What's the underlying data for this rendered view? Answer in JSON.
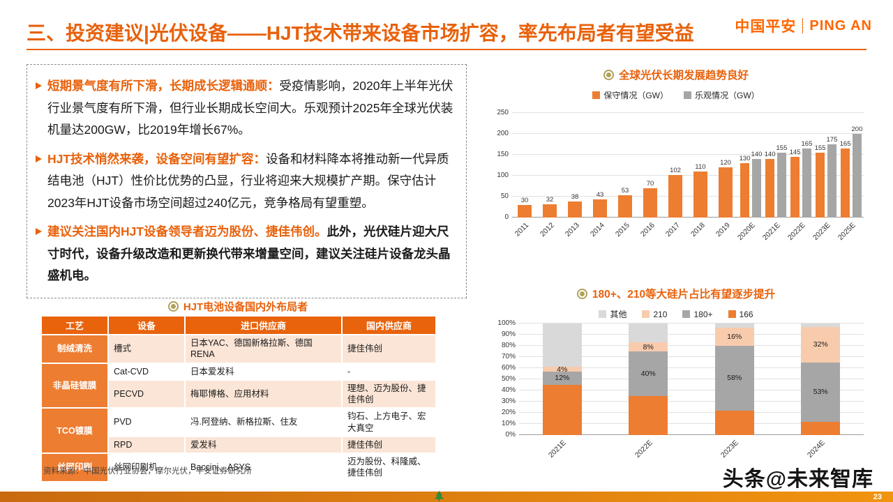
{
  "title": "三、投资建议|光伏设备——HJT技术带来设备市场扩容，率先布局者有望受益",
  "logo": {
    "cn": "中国平安",
    "en": "PING AN"
  },
  "bullets": [
    {
      "lead": "短期景气度有所下滑，长期成长逻辑通顺：",
      "body": "受疫情影响，2020年上半年光伏行业景气度有所下滑，但行业长期成长空间大。乐观预计2025年全球光伏装机量达200GW，比2019年增长67%。"
    },
    {
      "lead": "HJT技术悄然来袭，设备空间有望扩容：",
      "body": "设备和材料降本将推动新一代异质结电池（HJT）性价比优势的凸显，行业将迎来大规模扩产期。保守估计2023年HJT设备市场空间超过240亿元，竞争格局有望重塑。"
    },
    {
      "lead": "建议关注国内HJT设备领导者迈为股份、捷佳伟创。",
      "body": "此外，光伏硅片迎大尺寸时代，设备升级改造和更新换代带来增量空间，建议关注硅片设备龙头晶盛机电。"
    }
  ],
  "table": {
    "title": "HJT电池设备国内外布局者",
    "headers": [
      "工艺",
      "设备",
      "进口供应商",
      "国内供应商"
    ],
    "rows": [
      {
        "process": "制绒清洗",
        "process_span": 1,
        "device": "槽式",
        "import": "日本YAC、德国新格拉斯、德国RENA",
        "domestic": "捷佳伟创"
      },
      {
        "process": "非晶硅镀膜",
        "process_span": 2,
        "device": "Cat-CVD",
        "import": "日本爱发科",
        "domestic": "-"
      },
      {
        "device": "PECVD",
        "import": "梅耶博格、应用材料",
        "domestic": "理想、迈为股份、捷佳伟创"
      },
      {
        "process": "TCO镀膜",
        "process_span": 2,
        "device": "PVD",
        "import": "冯.阿登纳、新格拉斯、住友",
        "domestic": "钧石、上方电子、宏大真空"
      },
      {
        "device": "RPD",
        "import": "爱发科",
        "domestic": "捷佳伟创"
      },
      {
        "process": "丝网印刷",
        "process_span": 1,
        "device": "丝网印刷机",
        "import": "Baccini、ASYS",
        "domestic": "迈为股份、科隆威、捷佳伟创"
      }
    ],
    "source": "资料来源：中国光伏行业协会，摩尔光伏，平安证券研究所"
  },
  "chart_data": [
    {
      "type": "bar",
      "title": "全球光伏长期发展趋势良好",
      "categories": [
        "2011",
        "2012",
        "2013",
        "2014",
        "2015",
        "2016",
        "2017",
        "2018",
        "2019",
        "2020E",
        "2021E",
        "2022E",
        "2023E",
        "2025E"
      ],
      "series": [
        {
          "name": "保守情况（GW）",
          "color": "#ED7D31",
          "values": [
            30,
            32,
            38,
            43,
            53,
            70,
            102,
            110,
            120,
            130,
            140,
            145,
            155,
            165
          ]
        },
        {
          "name": "乐观情况（GW）",
          "color": "#A6A6A6",
          "values": [
            null,
            null,
            null,
            null,
            null,
            null,
            null,
            null,
            null,
            140,
            155,
            165,
            175,
            200
          ]
        }
      ],
      "ylim": [
        0,
        250
      ],
      "ytick_step": 50,
      "ytick_suffix": "",
      "legend_position": "top",
      "grid": true,
      "legend": [
        {
          "label": "保守情况（GW）",
          "color": "#ED7D31"
        },
        {
          "label": "乐观情况（GW）",
          "color": "#A6A6A6"
        }
      ]
    },
    {
      "type": "stacked-bar-100",
      "title": "180+、210等大硅片占比有望逐步提升",
      "categories": [
        "2021E",
        "2022E",
        "2023E",
        "2024E"
      ],
      "series": [
        {
          "name": "166",
          "color": "#ED7D31",
          "values": [
            45,
            35,
            22,
            12
          ],
          "show_labels": false
        },
        {
          "name": "180+",
          "color": "#A6A6A6",
          "values": [
            12,
            40,
            58,
            53
          ],
          "show_labels": true
        },
        {
          "name": "210",
          "color": "#F8CBAD",
          "values": [
            4,
            8,
            16,
            32
          ],
          "show_labels": true
        },
        {
          "name": "其他",
          "color": "#D9D9D9",
          "values": [
            39,
            17,
            4,
            3
          ],
          "show_labels": false
        }
      ],
      "ylim": [
        0,
        100
      ],
      "ytick_step": 10,
      "ytick_suffix": "%",
      "label_suffix": "%",
      "legend_position": "top",
      "grid": true,
      "legend": [
        {
          "label": "其他",
          "color": "#D9D9D9"
        },
        {
          "label": "210",
          "color": "#F8CBAD"
        },
        {
          "label": "180+",
          "color": "#A6A6A6"
        },
        {
          "label": "166",
          "color": "#ED7D31"
        }
      ]
    }
  ],
  "footer": {
    "watermark": "头条@未来智库",
    "page_number": "23"
  },
  "colors": {
    "accent_orange": "#E8610B",
    "bar_orange": "#ED7D31",
    "bar_gray": "#A6A6A6",
    "pale_orange": "#F8CBAD",
    "light_gray": "#D9D9D9",
    "row_peach": "#FBE5D6",
    "icon_olive": "#B0A05A"
  }
}
